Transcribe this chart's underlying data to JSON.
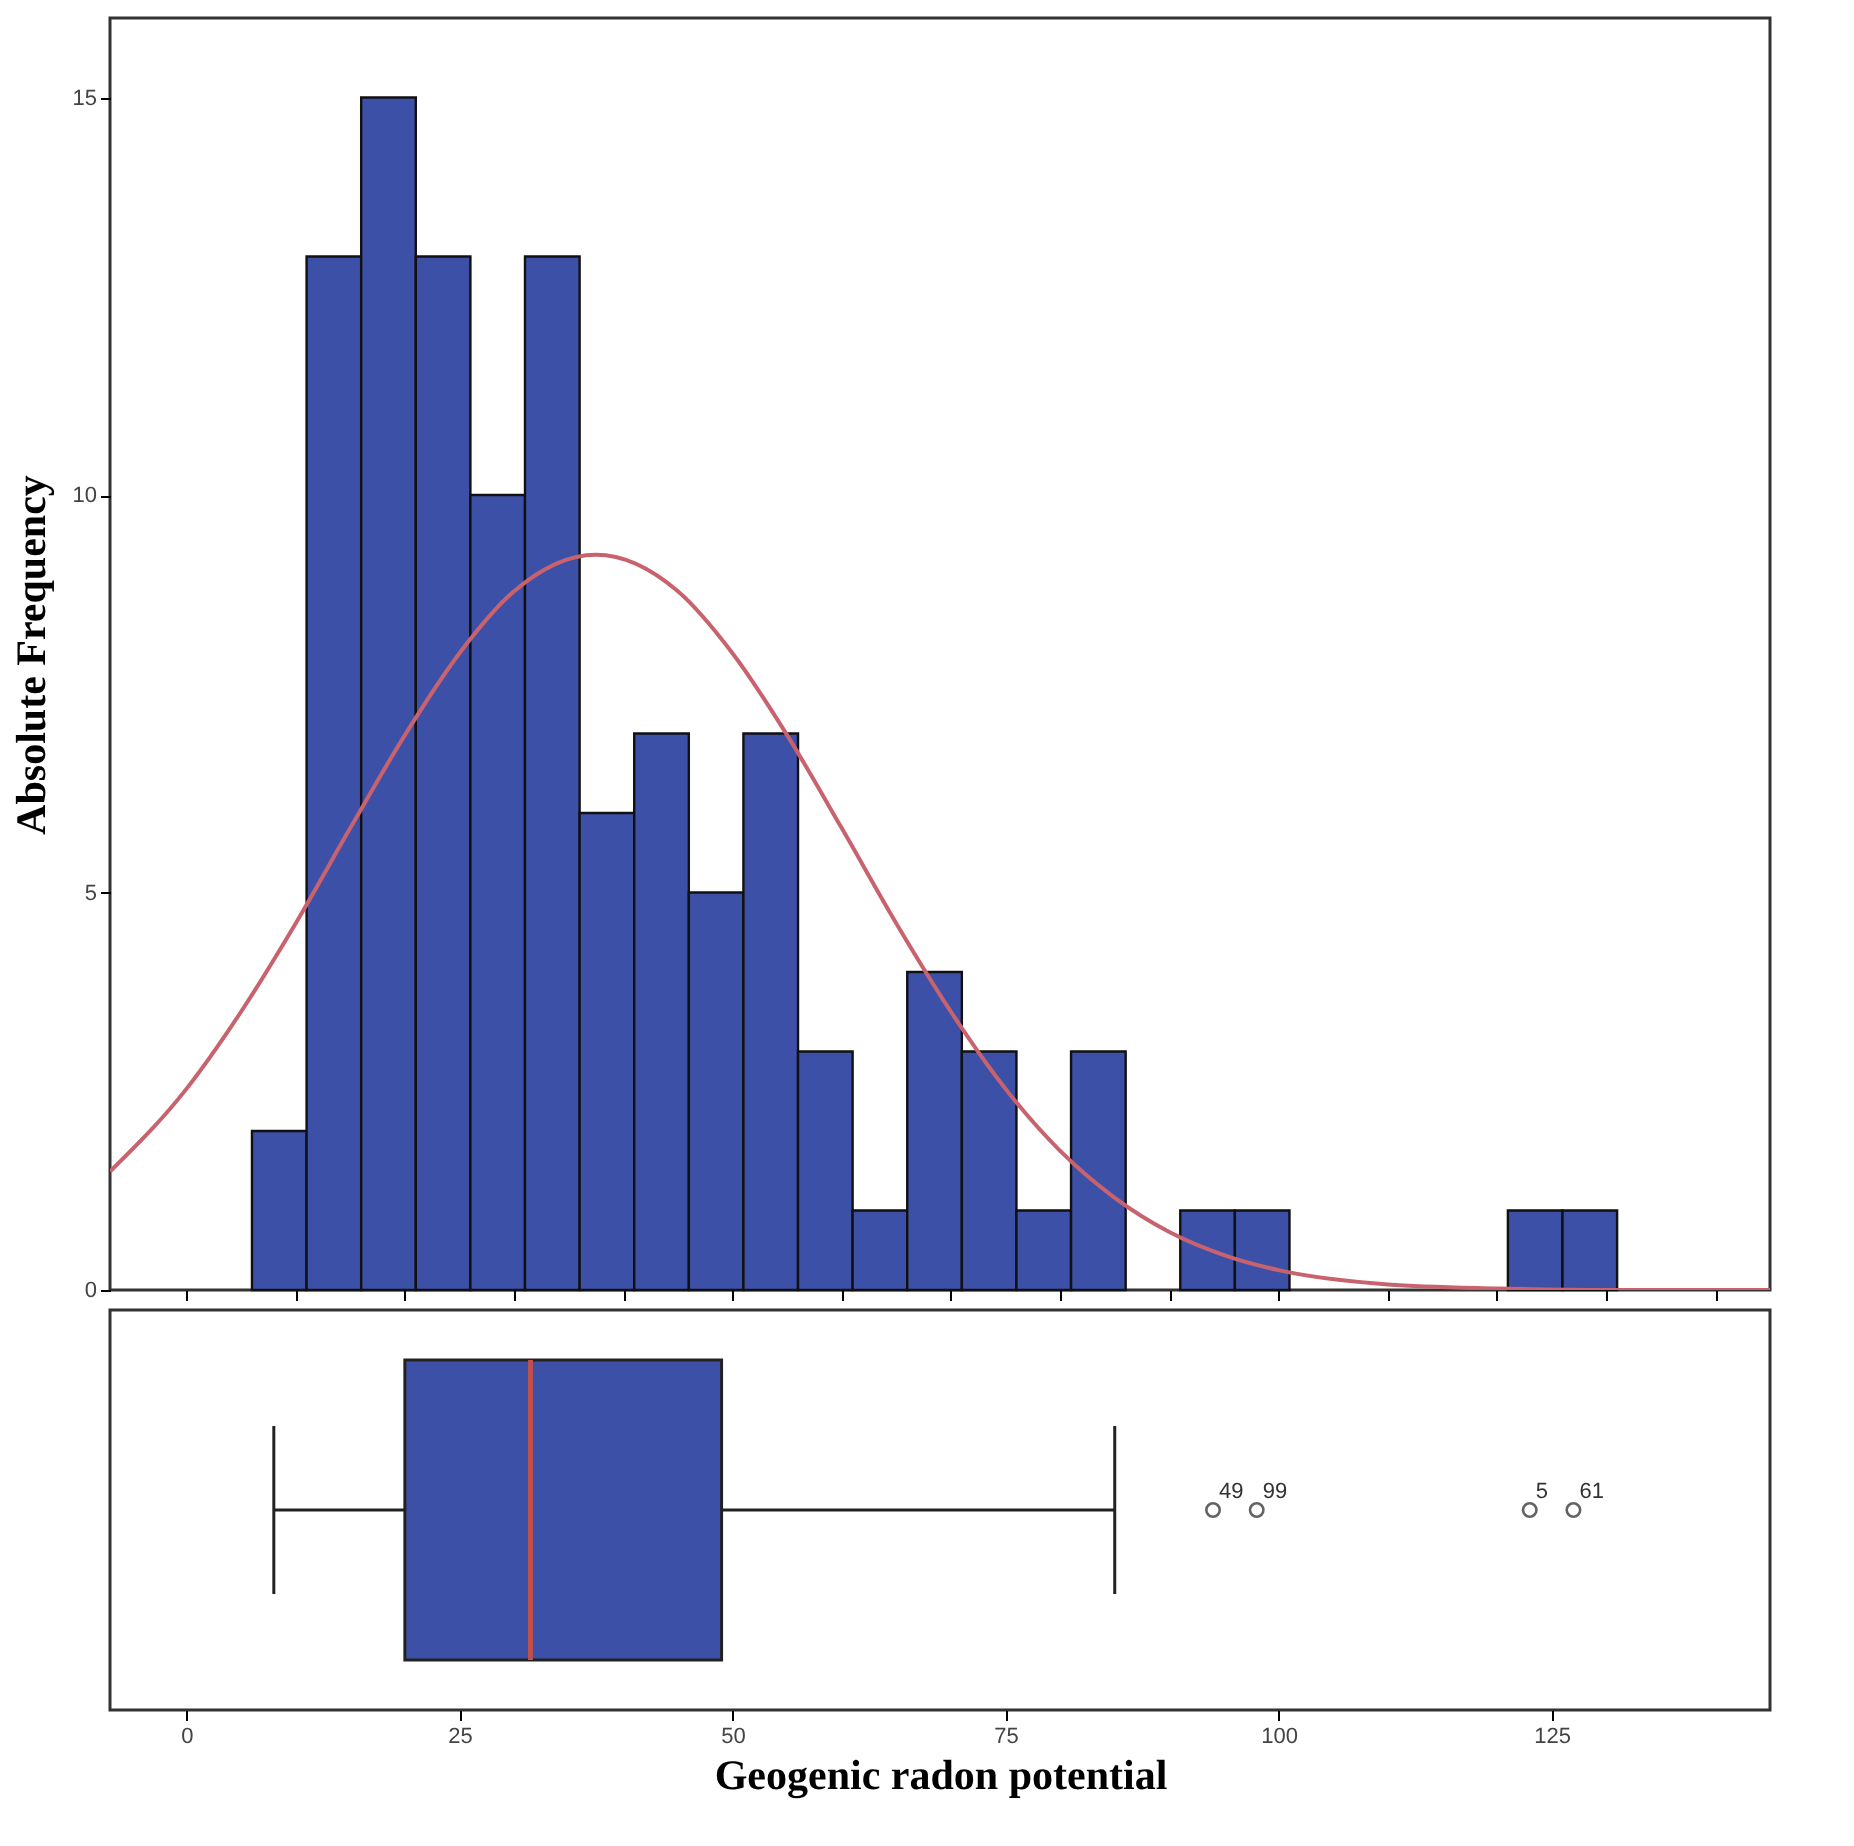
{
  "chart_data": [
    {
      "type": "histogram",
      "ylabel": "Absolute Frequency",
      "bins": [
        6,
        11,
        16,
        21,
        26,
        31,
        36,
        41,
        46,
        51,
        56,
        61,
        66,
        71,
        76,
        81,
        86,
        91,
        96,
        101,
        106,
        111,
        116,
        121,
        126,
        131
      ],
      "values": [
        2,
        13,
        15,
        13,
        10,
        13,
        6,
        7,
        5,
        7,
        3,
        1,
        4,
        3,
        1,
        3,
        0,
        1,
        1,
        0,
        0,
        0,
        0,
        1,
        1
      ],
      "color": "#3d50a8",
      "series": [
        {
          "type": "line",
          "color": "#c8636e",
          "x": [
            -7,
            0,
            5,
            10,
            15,
            20,
            25,
            30,
            37.5,
            45,
            50,
            55,
            60,
            65,
            70,
            75,
            80,
            85,
            90,
            95,
            100,
            110,
            120,
            130,
            145
          ],
          "values": [
            1.49,
            2.53,
            3.5,
            4.61,
            5.81,
            6.98,
            8.01,
            8.79,
            9.25,
            8.79,
            8.01,
            6.98,
            5.81,
            4.61,
            3.5,
            2.53,
            1.75,
            1.16,
            0.73,
            0.44,
            0.25,
            0.07,
            0.02,
            0,
            0
          ]
        }
      ],
      "xlim": [
        -7,
        145
      ],
      "ylim": [
        0,
        16
      ],
      "yticks": [
        0,
        5,
        10,
        15
      ],
      "tick_labels": "y",
      "grid": false
    },
    {
      "type": "box",
      "orientation": "horizontal",
      "xlabel": "Geogenic radon potential",
      "categories": [
        null
      ],
      "color": "#3d50a8",
      "boxes": [
        {
          "low": 8,
          "q1": 20,
          "median": 31.5,
          "q3": 49,
          "high": 85,
          "outliers": [
            94,
            98,
            123,
            127
          ]
        }
      ],
      "annotations": [
        "49",
        "99",
        "5",
        "61"
      ],
      "xlim": [
        -7,
        145
      ],
      "xticks": [
        0,
        25,
        50,
        75,
        100,
        125
      ],
      "tick_labels": "x",
      "grid": false
    }
  ]
}
